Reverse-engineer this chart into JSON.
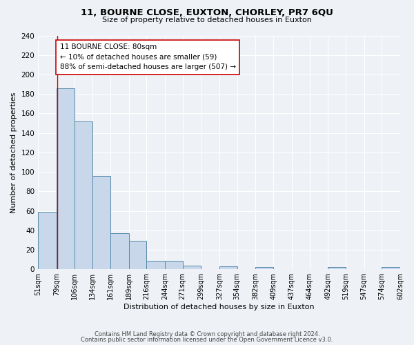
{
  "title": "11, BOURNE CLOSE, EUXTON, CHORLEY, PR7 6QU",
  "subtitle": "Size of property relative to detached houses in Euxton",
  "xlabel": "Distribution of detached houses by size in Euxton",
  "ylabel": "Number of detached properties",
  "bar_edges": [
    51,
    79,
    106,
    134,
    161,
    189,
    216,
    244,
    271,
    299,
    327,
    354,
    382,
    409,
    437,
    464,
    492,
    519,
    547,
    574,
    602
  ],
  "bar_heights": [
    59,
    186,
    152,
    96,
    37,
    29,
    9,
    9,
    4,
    0,
    3,
    0,
    2,
    0,
    0,
    0,
    2,
    0,
    0,
    2
  ],
  "bar_color": "#c8d8ea",
  "bar_edge_color": "#5588aa",
  "vline_x": 80,
  "vline_color": "#cc0000",
  "ylim": [
    0,
    240
  ],
  "yticks": [
    0,
    20,
    40,
    60,
    80,
    100,
    120,
    140,
    160,
    180,
    200,
    220,
    240
  ],
  "annotation_line1": "11 BOURNE CLOSE: 80sqm",
  "annotation_line2": "← 10% of detached houses are smaller (59)",
  "annotation_line3": "88% of semi-detached houses are larger (507) →",
  "annotation_box_color": "#ffffff",
  "annotation_box_edge_color": "#cc0000",
  "bg_color": "#eef2f6",
  "grid_color": "#ffffff",
  "footer1": "Contains HM Land Registry data © Crown copyright and database right 2024.",
  "footer2": "Contains public sector information licensed under the Open Government Licence v3.0."
}
